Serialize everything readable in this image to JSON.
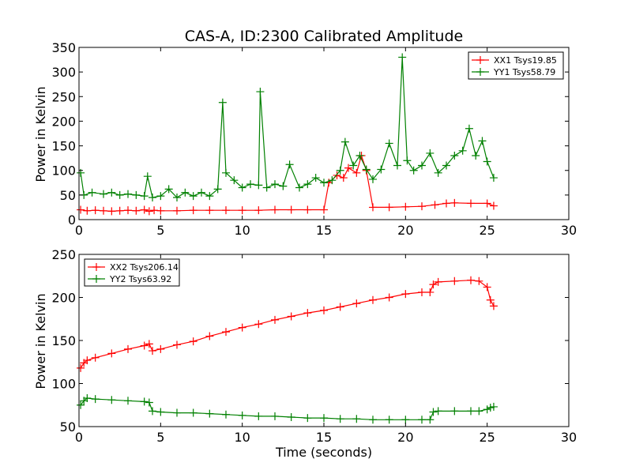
{
  "chart_data": [
    {
      "type": "line",
      "title": "CAS-A, ID:2300 Calibrated Amplitude",
      "xlabel": "",
      "ylabel": "Power in Kelvin",
      "xlim": [
        0,
        30
      ],
      "ylim": [
        0,
        350
      ],
      "xticks": [
        "0",
        "5",
        "10",
        "15",
        "20",
        "25",
        "30"
      ],
      "yticks": [
        "0",
        "50",
        "100",
        "150",
        "200",
        "250",
        "300",
        "350"
      ],
      "legend_position": "top-right",
      "marker": "+",
      "series": [
        {
          "name": "XX1 Tsys19.85",
          "color": "#ff0000",
          "x": [
            0.1,
            0.5,
            1,
            1.5,
            2,
            2.5,
            3,
            3.5,
            4,
            4.3,
            4.6,
            5,
            6,
            7,
            8,
            9,
            10,
            11,
            12,
            13,
            14,
            15,
            15.3,
            15.8,
            16.2,
            16.5,
            17,
            17.3,
            17.6,
            18,
            19,
            20,
            21,
            21.8,
            22.5,
            23,
            24,
            25,
            25.4
          ],
          "y": [
            20,
            18,
            19,
            18,
            17,
            18,
            19,
            18,
            20,
            17,
            19,
            18,
            18,
            19,
            19,
            19,
            19,
            19,
            20,
            20,
            20,
            20,
            75,
            90,
            85,
            105,
            95,
            130,
            100,
            25,
            25,
            26,
            27,
            30,
            33,
            34,
            33,
            33,
            28
          ]
        },
        {
          "name": "YY1 Tsys58.79",
          "color": "#008000",
          "x": [
            0.1,
            0.3,
            0.8,
            1.5,
            2,
            2.5,
            3,
            3.5,
            4,
            4.2,
            4.5,
            5,
            5.5,
            6,
            6.5,
            7,
            7.5,
            8,
            8.5,
            8.8,
            9,
            9.5,
            10,
            10.5,
            11,
            11.1,
            11.5,
            12,
            12.5,
            12.9,
            13.5,
            14,
            14.5,
            15,
            15.5,
            16,
            16.3,
            16.8,
            17.2,
            17.6,
            18,
            18.5,
            19,
            19.5,
            19.8,
            20.1,
            20.5,
            21,
            21.5,
            22,
            22.5,
            23,
            23.5,
            23.9,
            24.3,
            24.7,
            25,
            25.4
          ],
          "y": [
            95,
            50,
            55,
            52,
            55,
            50,
            52,
            50,
            48,
            88,
            45,
            48,
            62,
            45,
            55,
            48,
            55,
            48,
            62,
            238,
            95,
            80,
            65,
            72,
            70,
            260,
            65,
            72,
            68,
            112,
            65,
            72,
            85,
            75,
            80,
            100,
            158,
            110,
            130,
            102,
            82,
            102,
            155,
            110,
            330,
            120,
            100,
            110,
            135,
            95,
            110,
            130,
            140,
            185,
            130,
            160,
            118,
            85
          ]
        }
      ]
    },
    {
      "type": "line",
      "title": "",
      "xlabel": "Time (seconds)",
      "ylabel": "Power in Kelvin",
      "xlim": [
        0,
        30
      ],
      "ylim": [
        50,
        250
      ],
      "xticks": [
        "0",
        "5",
        "10",
        "15",
        "20",
        "25",
        "30"
      ],
      "yticks": [
        "50",
        "100",
        "150",
        "200",
        "250"
      ],
      "legend_position": "top-left",
      "marker": "+",
      "series": [
        {
          "name": "XX2 Tsys206.14",
          "color": "#ff0000",
          "x": [
            0.1,
            0.3,
            0.5,
            1,
            2,
            3,
            4,
            4.3,
            4.5,
            5,
            6,
            7,
            8,
            9,
            10,
            11,
            12,
            13,
            14,
            15,
            16,
            17,
            18,
            19,
            20,
            21,
            21.5,
            21.7,
            22,
            23,
            24,
            24.5,
            25,
            25.2,
            25.4
          ],
          "y": [
            118,
            124,
            127,
            130,
            135,
            140,
            144,
            146,
            138,
            140,
            145,
            149,
            155,
            160,
            165,
            169,
            174,
            178,
            182,
            185,
            189,
            193,
            197,
            200,
            204,
            206,
            206,
            215,
            218,
            219,
            220,
            219,
            212,
            197,
            190
          ]
        },
        {
          "name": "YY2 Tsys63.92",
          "color": "#008000",
          "x": [
            0.1,
            0.3,
            0.5,
            1,
            2,
            3,
            4,
            4.3,
            4.5,
            5,
            6,
            7,
            8,
            9,
            10,
            11,
            12,
            13,
            14,
            15,
            16,
            17,
            18,
            19,
            20,
            21,
            21.5,
            21.7,
            22,
            23,
            24,
            24.5,
            25,
            25.2,
            25.4
          ],
          "y": [
            75,
            80,
            83,
            82,
            81,
            80,
            79,
            78,
            68,
            67,
            66,
            66,
            65,
            64,
            63,
            62,
            62,
            61,
            60,
            60,
            59,
            59,
            58,
            58,
            58,
            58,
            58,
            67,
            68,
            68,
            68,
            68,
            70,
            72,
            73
          ]
        }
      ]
    }
  ]
}
